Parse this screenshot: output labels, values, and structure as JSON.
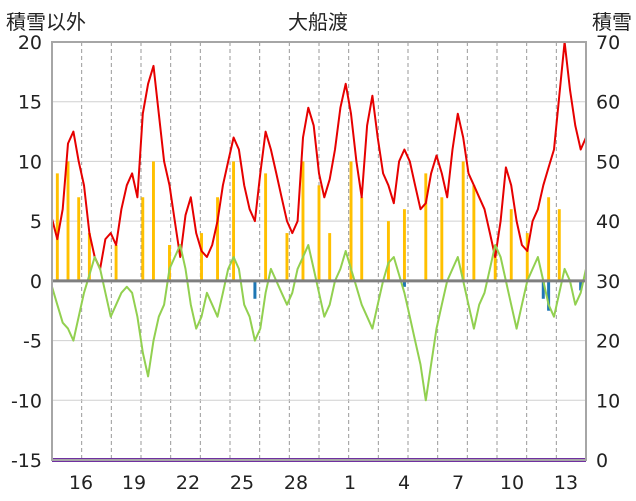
{
  "header": {
    "left_title": "積雪以外",
    "center_title": "大船渡",
    "right_title": "積雪"
  },
  "chart_data": {
    "type": "line",
    "title": "大船渡",
    "y_left": {
      "label": "積雪以外",
      "range": [
        -15,
        20
      ],
      "ticks": [
        "20",
        "15",
        "10",
        "5",
        "0",
        "-5",
        "-10",
        "-15"
      ]
    },
    "y_right": {
      "label": "積雪",
      "range": [
        0,
        70
      ],
      "ticks": [
        "70",
        "60",
        "50",
        "40",
        "30",
        "20",
        "10",
        "0"
      ]
    },
    "x": {
      "range": [
        0,
        100
      ],
      "tick_labels": [
        "16",
        "19",
        "22",
        "25",
        "28",
        "1",
        "4",
        "7",
        "10",
        "13"
      ]
    },
    "grid": {
      "vertical_dashed": true,
      "horizontal": true
    },
    "colors": {
      "red": "#e60000",
      "green": "#92d050",
      "yellow": "#ffc000",
      "blue": "#1f77b4",
      "purple": "#7030a0",
      "zero": "#7f7f7f",
      "frame": "#a6a6a6"
    },
    "series": [
      {
        "color": "red",
        "axis": "left",
        "points": [
          [
            0,
            5.2
          ],
          [
            1,
            3.5
          ],
          [
            2,
            6
          ],
          [
            3,
            11.5
          ],
          [
            4,
            12.5
          ],
          [
            5,
            10
          ],
          [
            6,
            8
          ],
          [
            7,
            4
          ],
          [
            8,
            2
          ],
          [
            9,
            1
          ],
          [
            10,
            3.5
          ],
          [
            11,
            4
          ],
          [
            12,
            3
          ],
          [
            13,
            6
          ],
          [
            14,
            8
          ],
          [
            15,
            9
          ],
          [
            16,
            7
          ],
          [
            17,
            14
          ],
          [
            18,
            16.5
          ],
          [
            19,
            18
          ],
          [
            20,
            14
          ],
          [
            21,
            10
          ],
          [
            22,
            8
          ],
          [
            23,
            5
          ],
          [
            24,
            2
          ],
          [
            25,
            5.5
          ],
          [
            26,
            7
          ],
          [
            27,
            4
          ],
          [
            28,
            2.5
          ],
          [
            29,
            2
          ],
          [
            30,
            3
          ],
          [
            31,
            5
          ],
          [
            32,
            8
          ],
          [
            33,
            10
          ],
          [
            34,
            12
          ],
          [
            35,
            11
          ],
          [
            36,
            8
          ],
          [
            37,
            6
          ],
          [
            38,
            5
          ],
          [
            39,
            9
          ],
          [
            40,
            12.5
          ],
          [
            41,
            11
          ],
          [
            42,
            9
          ],
          [
            43,
            7
          ],
          [
            44,
            5
          ],
          [
            45,
            4
          ],
          [
            46,
            5
          ],
          [
            47,
            12
          ],
          [
            48,
            14.5
          ],
          [
            49,
            13
          ],
          [
            50,
            9
          ],
          [
            51,
            7
          ],
          [
            52,
            8.5
          ],
          [
            53,
            11
          ],
          [
            54,
            14.5
          ],
          [
            55,
            16.5
          ],
          [
            56,
            14
          ],
          [
            57,
            10
          ],
          [
            58,
            7
          ],
          [
            59,
            13
          ],
          [
            60,
            15.5
          ],
          [
            61,
            12
          ],
          [
            62,
            9
          ],
          [
            63,
            8
          ],
          [
            64,
            6.5
          ],
          [
            65,
            10
          ],
          [
            66,
            11
          ],
          [
            67,
            10
          ],
          [
            68,
            8
          ],
          [
            69,
            6
          ],
          [
            70,
            6.5
          ],
          [
            71,
            9
          ],
          [
            72,
            10.5
          ],
          [
            73,
            9
          ],
          [
            74,
            7
          ],
          [
            75,
            11
          ],
          [
            76,
            14
          ],
          [
            77,
            12
          ],
          [
            78,
            9
          ],
          [
            79,
            8
          ],
          [
            80,
            7
          ],
          [
            81,
            6
          ],
          [
            82,
            4
          ],
          [
            83,
            2
          ],
          [
            84,
            5
          ],
          [
            85,
            9.5
          ],
          [
            86,
            8
          ],
          [
            87,
            5
          ],
          [
            88,
            3
          ],
          [
            89,
            2.5
          ],
          [
            90,
            5
          ],
          [
            91,
            6
          ],
          [
            92,
            8
          ],
          [
            93,
            9.5
          ],
          [
            94,
            11
          ],
          [
            95,
            15.5
          ],
          [
            96,
            20
          ],
          [
            97,
            16
          ],
          [
            98,
            13
          ],
          [
            99,
            11
          ],
          [
            100,
            12
          ]
        ]
      },
      {
        "color": "green",
        "axis": "left",
        "points": [
          [
            0,
            -0.5
          ],
          [
            1,
            -2
          ],
          [
            2,
            -3.5
          ],
          [
            3,
            -4
          ],
          [
            4,
            -5
          ],
          [
            5,
            -3
          ],
          [
            6,
            -1
          ],
          [
            7,
            0.5
          ],
          [
            8,
            2
          ],
          [
            9,
            1
          ],
          [
            10,
            -1
          ],
          [
            11,
            -3
          ],
          [
            12,
            -2
          ],
          [
            13,
            -1
          ],
          [
            14,
            -0.5
          ],
          [
            15,
            -1
          ],
          [
            16,
            -3
          ],
          [
            17,
            -6
          ],
          [
            18,
            -8
          ],
          [
            19,
            -5
          ],
          [
            20,
            -3
          ],
          [
            21,
            -2
          ],
          [
            22,
            1
          ],
          [
            23,
            2
          ],
          [
            24,
            3
          ],
          [
            25,
            1
          ],
          [
            26,
            -2
          ],
          [
            27,
            -4
          ],
          [
            28,
            -3
          ],
          [
            29,
            -1
          ],
          [
            30,
            -2
          ],
          [
            31,
            -3
          ],
          [
            32,
            -1
          ],
          [
            33,
            1
          ],
          [
            34,
            2
          ],
          [
            35,
            1
          ],
          [
            36,
            -2
          ],
          [
            37,
            -3
          ],
          [
            38,
            -5
          ],
          [
            39,
            -4
          ],
          [
            40,
            -1
          ],
          [
            41,
            1
          ],
          [
            42,
            0
          ],
          [
            43,
            -1
          ],
          [
            44,
            -2
          ],
          [
            45,
            -1
          ],
          [
            46,
            1
          ],
          [
            47,
            2
          ],
          [
            48,
            3
          ],
          [
            49,
            1
          ],
          [
            50,
            -1
          ],
          [
            51,
            -3
          ],
          [
            52,
            -2
          ],
          [
            53,
            0
          ],
          [
            54,
            1
          ],
          [
            55,
            2.5
          ],
          [
            56,
            1
          ],
          [
            57,
            -0.5
          ],
          [
            58,
            -2
          ],
          [
            59,
            -3
          ],
          [
            60,
            -4
          ],
          [
            61,
            -2
          ],
          [
            62,
            0
          ],
          [
            63,
            1.5
          ],
          [
            64,
            2
          ],
          [
            65,
            0.5
          ],
          [
            66,
            -1
          ],
          [
            67,
            -3
          ],
          [
            68,
            -5
          ],
          [
            69,
            -7
          ],
          [
            70,
            -10
          ],
          [
            71,
            -7
          ],
          [
            72,
            -4
          ],
          [
            73,
            -2
          ],
          [
            74,
            0
          ],
          [
            75,
            1
          ],
          [
            76,
            2
          ],
          [
            77,
            0
          ],
          [
            78,
            -2
          ],
          [
            79,
            -4
          ],
          [
            80,
            -2
          ],
          [
            81,
            -1
          ],
          [
            82,
            1
          ],
          [
            83,
            3
          ],
          [
            84,
            2
          ],
          [
            85,
            0
          ],
          [
            86,
            -2
          ],
          [
            87,
            -4
          ],
          [
            88,
            -2
          ],
          [
            89,
            0
          ],
          [
            90,
            1
          ],
          [
            91,
            2
          ],
          [
            92,
            0
          ],
          [
            93,
            -2
          ],
          [
            94,
            -3
          ],
          [
            95,
            -1
          ],
          [
            96,
            1
          ],
          [
            97,
            0
          ],
          [
            98,
            -2
          ],
          [
            99,
            -1
          ],
          [
            100,
            1
          ]
        ]
      }
    ],
    "bars": {
      "color": "yellow",
      "axis": "right",
      "values": [
        [
          1,
          48
        ],
        [
          3,
          50
        ],
        [
          5,
          44
        ],
        [
          7,
          38
        ],
        [
          12,
          36
        ],
        [
          17,
          44
        ],
        [
          19,
          50
        ],
        [
          22,
          36
        ],
        [
          28,
          38
        ],
        [
          31,
          44
        ],
        [
          34,
          50
        ],
        [
          40,
          48
        ],
        [
          44,
          38
        ],
        [
          47,
          50
        ],
        [
          50,
          46
        ],
        [
          52,
          38
        ],
        [
          56,
          50
        ],
        [
          58,
          44
        ],
        [
          63,
          40
        ],
        [
          66,
          42
        ],
        [
          70,
          48
        ],
        [
          73,
          44
        ],
        [
          77,
          50
        ],
        [
          79,
          46
        ],
        [
          83,
          36
        ],
        [
          86,
          42
        ],
        [
          89,
          38
        ],
        [
          93,
          44
        ],
        [
          95,
          42
        ]
      ]
    },
    "neg_bars": {
      "color": "blue",
      "axis": "left",
      "values": [
        [
          38,
          -1.5
        ],
        [
          66,
          -0.5
        ],
        [
          92,
          -1.5
        ],
        [
          93,
          -2.5
        ],
        [
          99,
          -0.8
        ]
      ]
    }
  }
}
